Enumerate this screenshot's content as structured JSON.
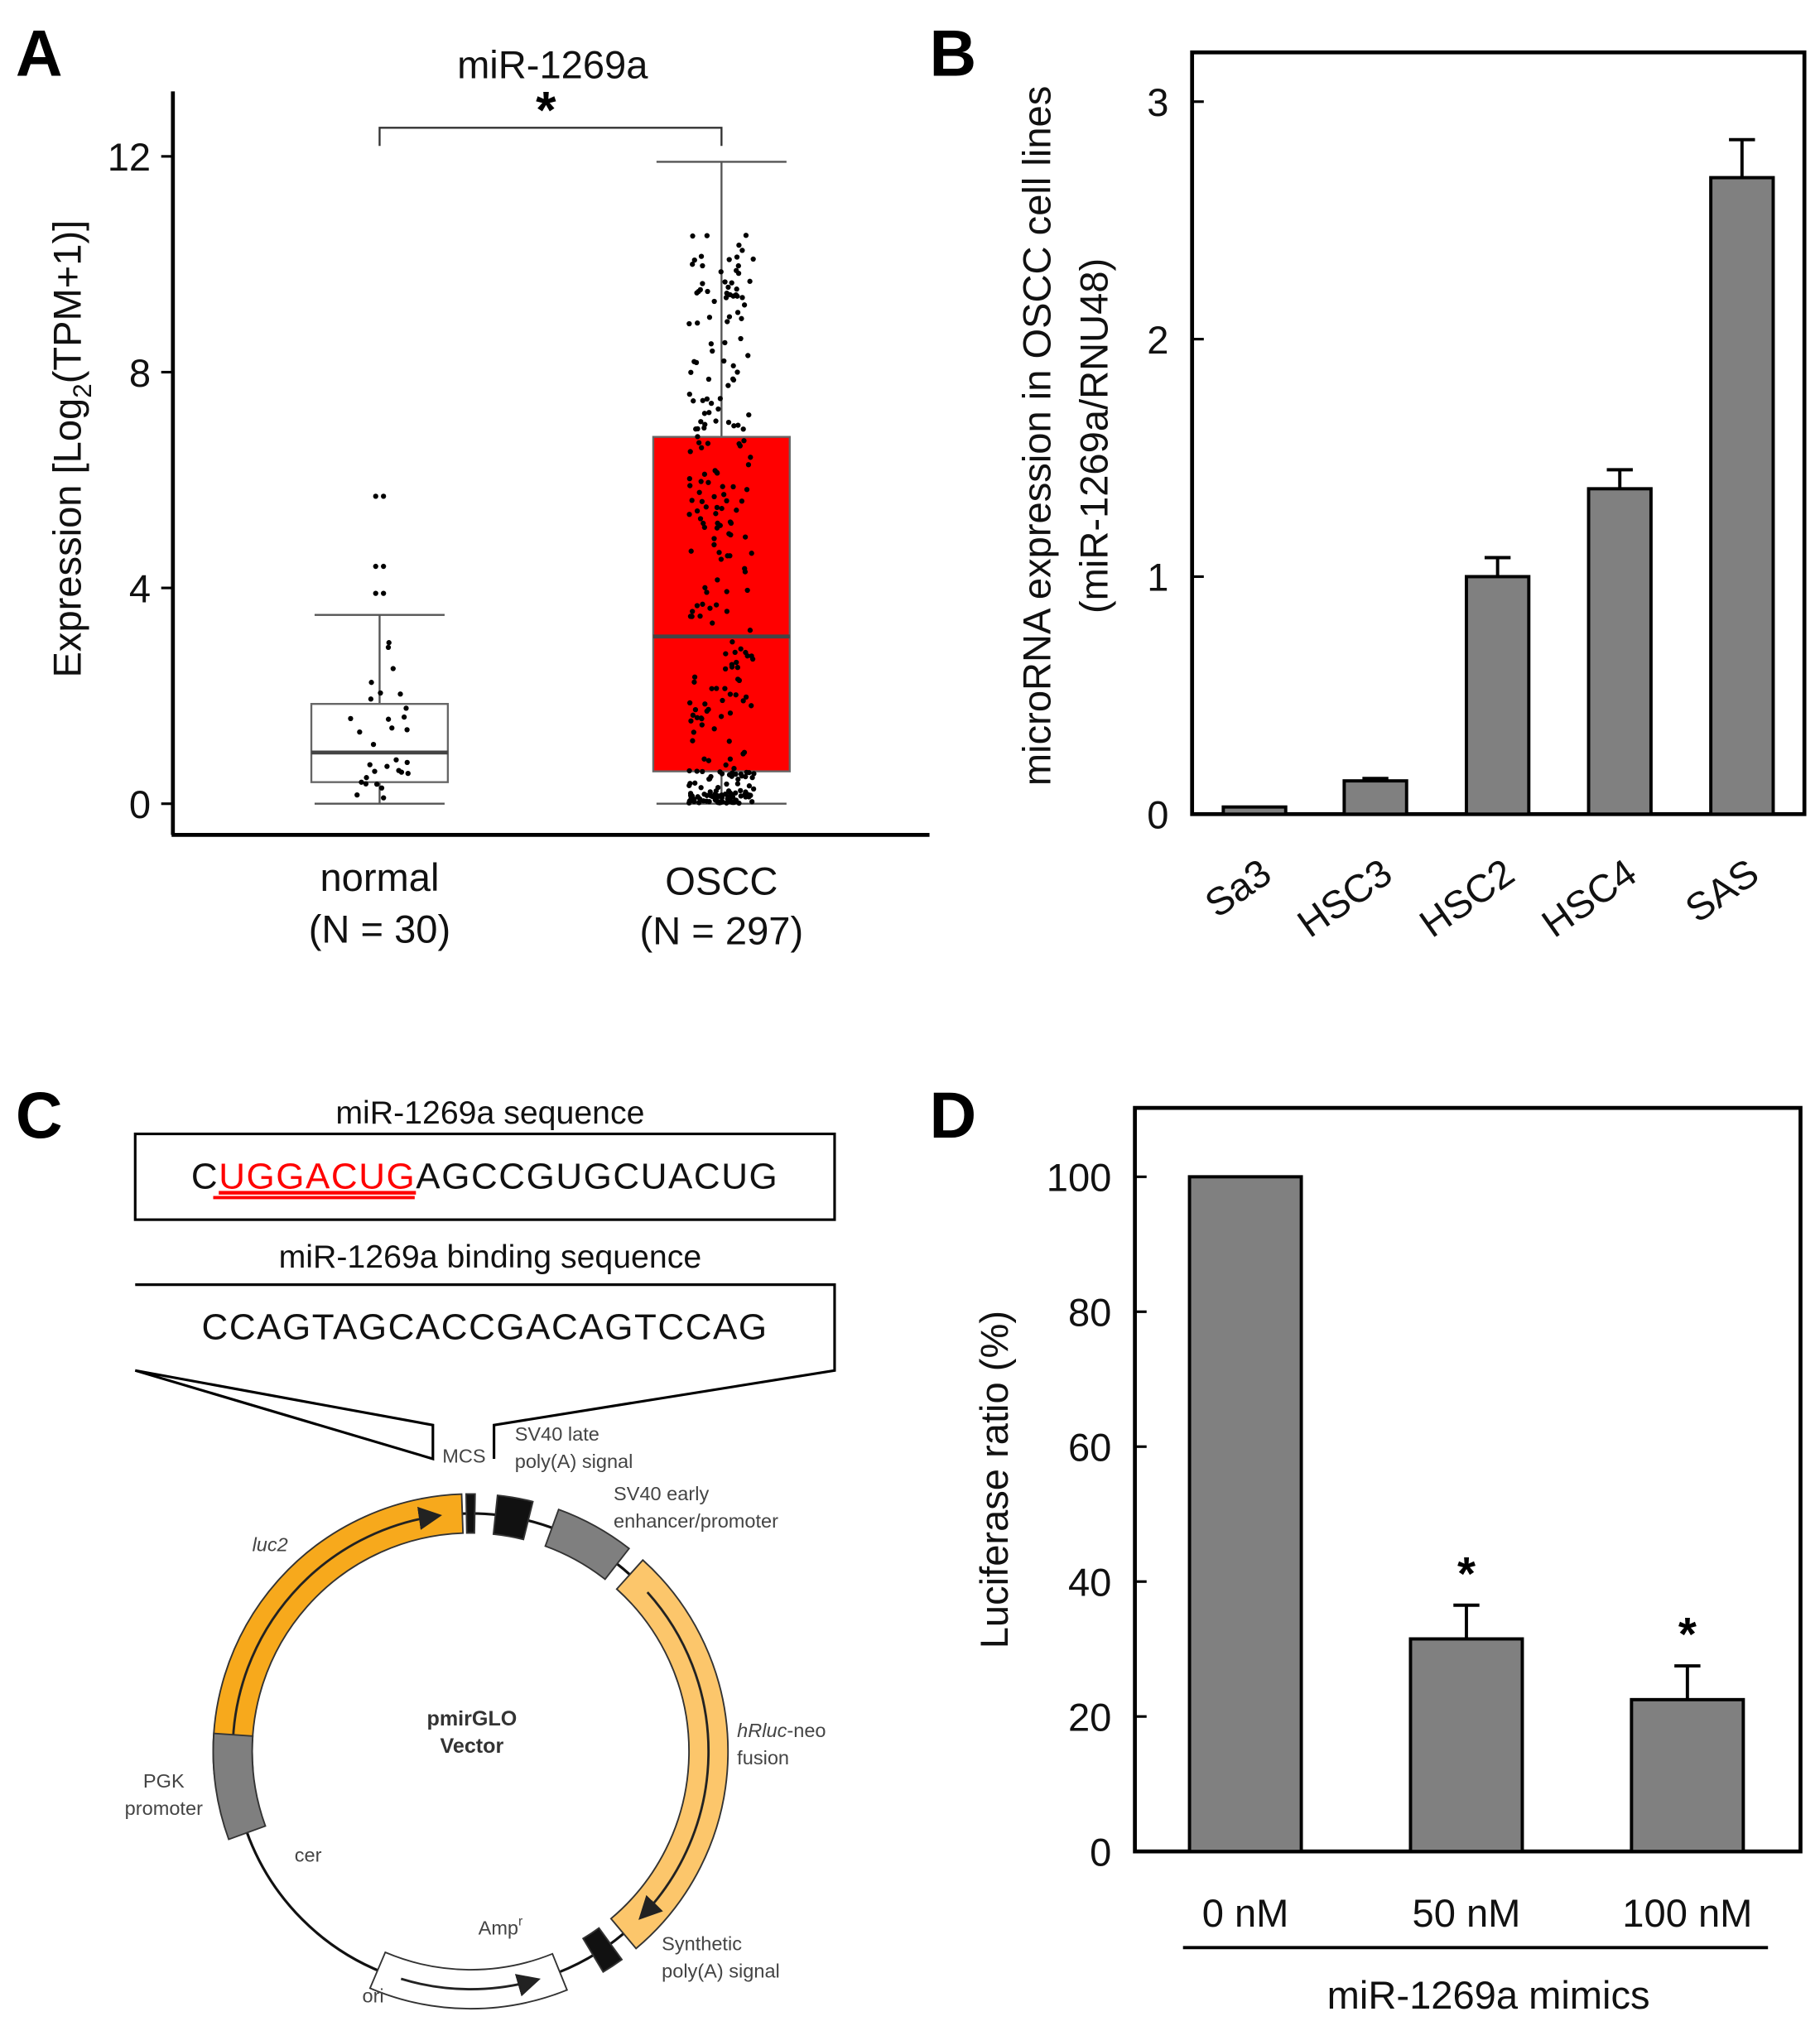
{
  "panels": {
    "a": "A",
    "b": "B",
    "c": "C",
    "d": "D"
  },
  "chart_data": [
    {
      "type": "box",
      "title": "miR-1269a",
      "ylabel": "Expression [Log2(TPM+1)]",
      "ylabel_parts": {
        "pre": "Expression [Log",
        "sub": "2",
        "post": "(TPM+1)]"
      },
      "ylim": [
        -0.5,
        13
      ],
      "yticks": [
        0,
        4,
        8,
        12
      ],
      "significance": "*",
      "groups": [
        {
          "name": "normal",
          "n_label": "(N = 30)",
          "n": 30,
          "min": 0,
          "q1": 0.4,
          "median": 0.95,
          "q3": 1.85,
          "max": 3.5,
          "color": "#ffffff",
          "outliers": [
            3.9,
            4.4,
            5.7
          ]
        },
        {
          "name": "OSCC",
          "n_label": "(N = 297)",
          "n": 297,
          "min": 0,
          "q1": 0.6,
          "median": 3.1,
          "q3": 6.8,
          "max": 11.9,
          "color": "#ff0000",
          "outliers": []
        }
      ]
    },
    {
      "type": "bar",
      "ylabel": "microRNA expression in OSCC cell lines",
      "ylabel2": "(miR-1269a/RNU48)",
      "categories": [
        "Sa3",
        "HSC3",
        "HSC2",
        "HSC4",
        "SAS"
      ],
      "values": [
        0.03,
        0.14,
        1.0,
        1.37,
        2.68
      ],
      "errors": [
        0.0,
        0.01,
        0.08,
        0.08,
        0.16
      ],
      "ylim": [
        0,
        3.2
      ],
      "yticks": [
        0,
        1,
        2,
        3
      ],
      "bar_color": "#808080"
    },
    {
      "type": "bar",
      "ylabel": "Luciferase ratio (%)",
      "xlabel": "miR-1269a mimics",
      "categories": [
        "0 nM",
        "50 nM",
        "100 nM"
      ],
      "values": [
        100,
        31.5,
        22.5
      ],
      "errors": [
        0,
        5,
        5
      ],
      "significance": [
        "",
        "*",
        "*"
      ],
      "ylim": [
        0,
        110
      ],
      "yticks": [
        0,
        20,
        40,
        60,
        80,
        100
      ],
      "bar_color": "#808080"
    }
  ],
  "diagram": {
    "seq_title": "miR-1269a sequence",
    "seq_first": "C",
    "seq_seed": "UGGACUG",
    "seq_rest": "AGCCGUGCUACUG",
    "seed_color": "#ff0000",
    "binding_title": "miR-1269a binding sequence",
    "binding_seq": "CCAGTAGCACCGACAGTCCAG",
    "vector_name": [
      "pmirGLO",
      "Vector"
    ],
    "labels": {
      "mcs": "MCS",
      "sv40_late": [
        "SV40 late",
        "poly(A) signal"
      ],
      "sv40_early": [
        "SV40 early",
        "enhancer/promoter"
      ],
      "luc2": "luc2",
      "hrluc": [
        "hRluc",
        "-neo",
        "fusion"
      ],
      "pgk": [
        "PGK",
        "promoter"
      ],
      "cer": "cer",
      "amp": "Amp",
      "amp_sup": "r",
      "ori": "ori",
      "synth": [
        "Synthetic",
        "poly(A) signal"
      ]
    },
    "colors": {
      "luc2": "#f7a91c",
      "hrluc": "#fcc66b",
      "gray": "#7f7f7f",
      "black": "#111111"
    }
  }
}
